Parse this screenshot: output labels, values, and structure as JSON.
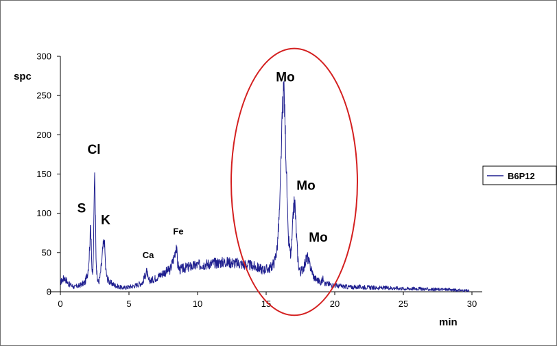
{
  "chart_data": {
    "type": "line",
    "xlabel": "min",
    "ylabel": "spc",
    "xlim": [
      0,
      30
    ],
    "ylim": [
      0,
      300
    ],
    "x_ticks": [
      "0",
      "5",
      "10",
      "15",
      "20",
      "25",
      "30"
    ],
    "y_ticks": [
      "0",
      "50",
      "100",
      "150",
      "200",
      "250",
      "300"
    ],
    "grid": false,
    "legend": "right",
    "series": [
      {
        "name": "B6P12",
        "color": "#1f1f8f",
        "x": [
          0,
          0.3,
          0.6,
          1.0,
          1.4,
          1.8,
          2.0,
          2.1,
          2.2,
          2.25,
          2.3,
          2.35,
          2.4,
          2.45,
          2.5,
          2.55,
          2.6,
          2.65,
          2.7,
          2.8,
          2.9,
          3.0,
          3.1,
          3.2,
          3.25,
          3.3,
          3.4,
          3.6,
          4.0,
          4.5,
          5.0,
          5.5,
          6.0,
          6.2,
          6.3,
          6.4,
          6.6,
          7.0,
          7.5,
          8.0,
          8.3,
          8.45,
          8.55,
          8.7,
          9.0,
          10.0,
          11.0,
          12.0,
          13.0,
          14.0,
          14.8,
          15.3,
          15.6,
          15.8,
          16.0,
          16.1,
          16.2,
          16.3,
          16.4,
          16.5,
          16.6,
          16.8,
          16.9,
          17.0,
          17.1,
          17.2,
          17.3,
          17.4,
          17.5,
          17.7,
          17.9,
          18.0,
          18.1,
          18.3,
          18.5,
          18.8,
          19.0,
          19.2,
          19.3,
          19.5,
          20.0,
          21.0,
          22.0,
          23.0,
          24.0,
          25.0,
          26.0,
          27.0,
          28.0,
          29.0,
          29.8
        ],
        "values": [
          12,
          18,
          10,
          6,
          8,
          12,
          25,
          45,
          83,
          70,
          30,
          20,
          40,
          100,
          160,
          110,
          50,
          25,
          15,
          12,
          20,
          35,
          55,
          66,
          50,
          30,
          18,
          12,
          8,
          5,
          6,
          8,
          12,
          22,
          26,
          15,
          14,
          18,
          24,
          28,
          45,
          60,
          35,
          28,
          30,
          34,
          36,
          38,
          36,
          33,
          28,
          30,
          38,
          55,
          110,
          180,
          235,
          260,
          200,
          140,
          70,
          45,
          70,
          108,
          112,
          75,
          45,
          30,
          25,
          30,
          40,
          45,
          38,
          28,
          18,
          14,
          12,
          18,
          10,
          10,
          8,
          6,
          6,
          5,
          5,
          4,
          4,
          3,
          3,
          2,
          1
        ]
      }
    ],
    "annotations": [
      {
        "text": "S",
        "x": 1.55,
        "y": 101,
        "size": "big"
      },
      {
        "text": "Cl",
        "x": 2.45,
        "y": 176,
        "size": "big"
      },
      {
        "text": "K",
        "x": 3.3,
        "y": 86,
        "size": "big"
      },
      {
        "text": "Ca",
        "x": 6.4,
        "y": 43,
        "size": "small"
      },
      {
        "text": "Fe",
        "x": 8.6,
        "y": 73,
        "size": "small"
      },
      {
        "text": "Mo",
        "x": 16.4,
        "y": 268,
        "size": "big"
      },
      {
        "text": "Mo",
        "x": 17.9,
        "y": 130,
        "size": "big"
      },
      {
        "text": "Mo",
        "x": 18.8,
        "y": 64,
        "size": "big"
      }
    ],
    "highlight_ellipse": {
      "color": "#d42020",
      "cx": 17.05,
      "cy": 140,
      "rx": 4.6,
      "ry": 170
    }
  }
}
